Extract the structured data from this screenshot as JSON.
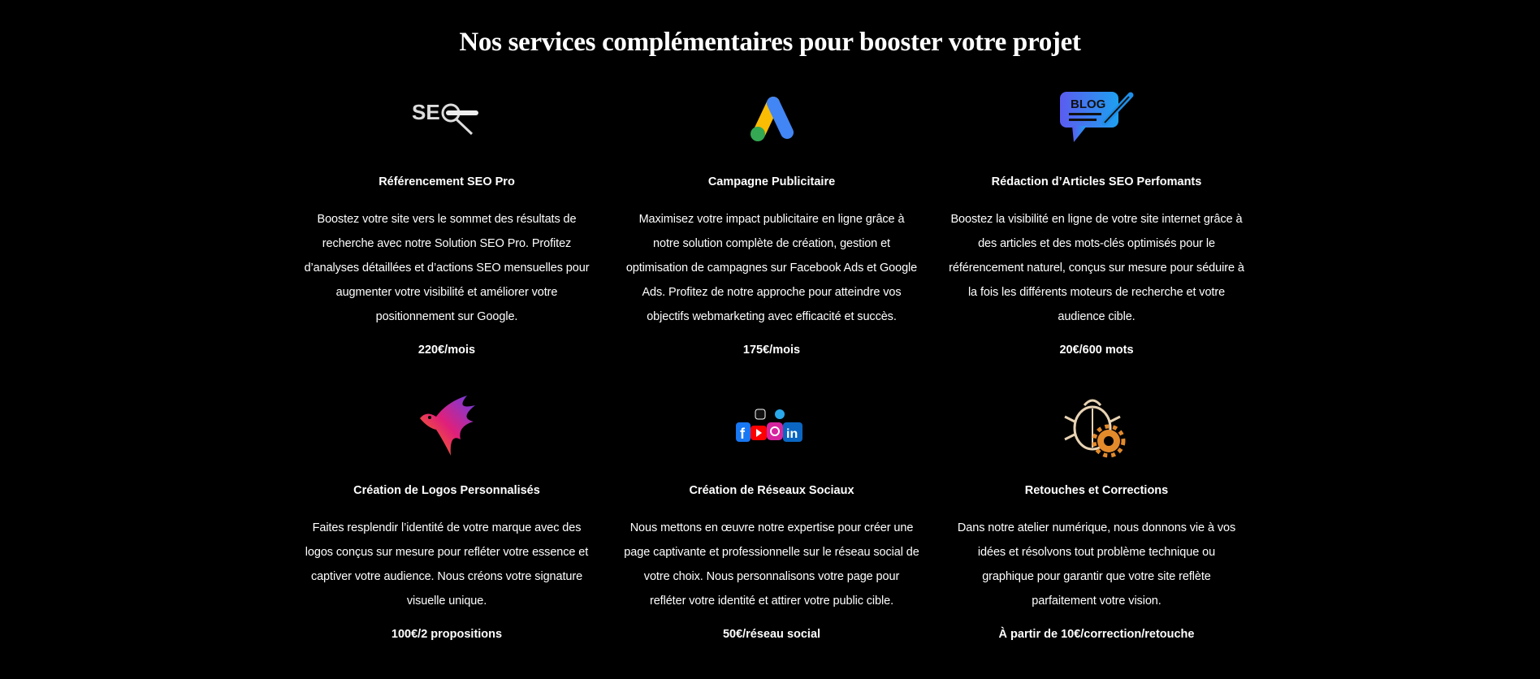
{
  "title": "Nos services complémentaires pour booster votre projet",
  "services": [
    {
      "icon": "seo-magnifier-icon",
      "heading": "Référencement SEO Pro",
      "lines": [
        "Boostez votre site vers le sommet des résultats de",
        "recherche avec notre Solution SEO Pro. Profitez",
        "d’analyses détaillées et d’actions SEO mensuelles pour",
        "augmenter votre visibilité et améliorer votre",
        "positionnement sur Google."
      ],
      "price": "220€/mois"
    },
    {
      "icon": "google-ads-icon",
      "heading": "Campagne Publicitaire",
      "lines": [
        "Maximisez votre impact publicitaire en ligne grâce à",
        "notre solution complète de création, gestion et",
        "optimisation de campagnes sur Facebook Ads et Google",
        "Ads. Profitez de notre approche pour atteindre vos",
        "objectifs webmarketing avec efficacité et succès."
      ],
      "price": "175€/mois"
    },
    {
      "icon": "blog-pencil-icon",
      "icon_text": "BLOG",
      "heading": "Rédaction d’Articles SEO Perfomants",
      "lines": [
        "Boostez la visibilité en ligne de votre site internet grâce à",
        "des articles et des mots-clés optimisés pour le",
        "référencement naturel, conçus sur mesure pour séduire à",
        "la fois les différents moteurs de recherche et votre",
        "audience cible."
      ],
      "price": "20€/600 mots"
    },
    {
      "icon": "colorful-bird-logo-icon",
      "heading": "Création de Logos Personnalisés",
      "lines": [
        "Faites resplendir l’identité de votre marque avec des",
        "logos conçus sur mesure pour refléter votre essence et",
        "captiver votre audience. Nous créons votre signature",
        "visuelle unique."
      ],
      "price": "100€/2 propositions"
    },
    {
      "icon": "social-networks-icon",
      "heading": "Création de Réseaux Sociaux",
      "lines": [
        "Nous mettons en œuvre notre expertise pour créer une",
        "page captivante et professionnelle sur le réseau social de",
        "votre choix. Nous personnalisons votre page pour",
        "refléter votre identité et attirer votre public cible."
      ],
      "price": "50€/réseau social"
    },
    {
      "icon": "bug-gear-icon",
      "heading": "Retouches et Corrections",
      "lines": [
        "Dans notre atelier numérique, nous donnons vie à vos",
        "idées et résolvons tout problème technique ou",
        "graphique pour garantir que votre site reflète",
        "parfaitement votre vision."
      ],
      "price": "À partir de 10€/correction/retouche"
    }
  ]
}
